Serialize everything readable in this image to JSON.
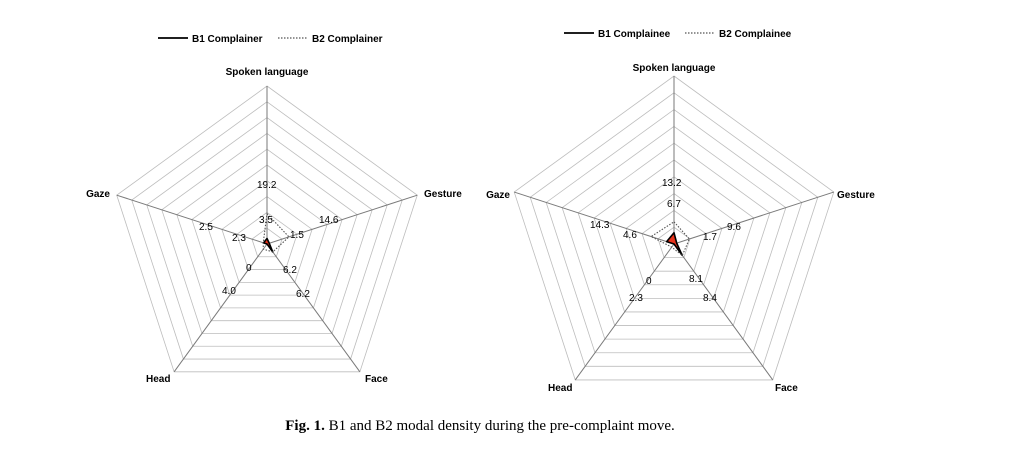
{
  "caption": {
    "label": "Fig. 1.",
    "text": "B1 and B2 modal density during the pre-complaint move."
  },
  "colors": {
    "grid": "#bdbdbd",
    "axis": "#7a7a7a",
    "fill": "#e8321a",
    "series1": "#000000",
    "series2": "#555555"
  },
  "chart_data": [
    {
      "type": "radar",
      "axes": [
        "Spoken language",
        "Gesture",
        "Face",
        "Head",
        "Gaze"
      ],
      "rmax": 100,
      "rings": 10,
      "legend": {
        "placement": "top"
      },
      "series": [
        {
          "name": "B1 Complainer",
          "style": "solid",
          "values": [
            3.5,
            1.5,
            6.2,
            0,
            2.3
          ]
        },
        {
          "name": "B2 Complainer",
          "style": "dotted",
          "values": [
            19.2,
            14.6,
            6.2,
            4.0,
            2.5
          ]
        }
      ]
    },
    {
      "type": "radar",
      "axes": [
        "Spoken language",
        "Gesture",
        "Face",
        "Head",
        "Gaze"
      ],
      "rmax": 100,
      "rings": 10,
      "legend": {
        "placement": "top"
      },
      "series": [
        {
          "name": "B1 Complainee",
          "style": "solid",
          "values": [
            6.7,
            1.7,
            8.1,
            0,
            4.6
          ]
        },
        {
          "name": "B2 Complainee",
          "style": "dotted",
          "values": [
            13.2,
            9.6,
            8.4,
            2.3,
            14.3
          ]
        }
      ]
    }
  ]
}
